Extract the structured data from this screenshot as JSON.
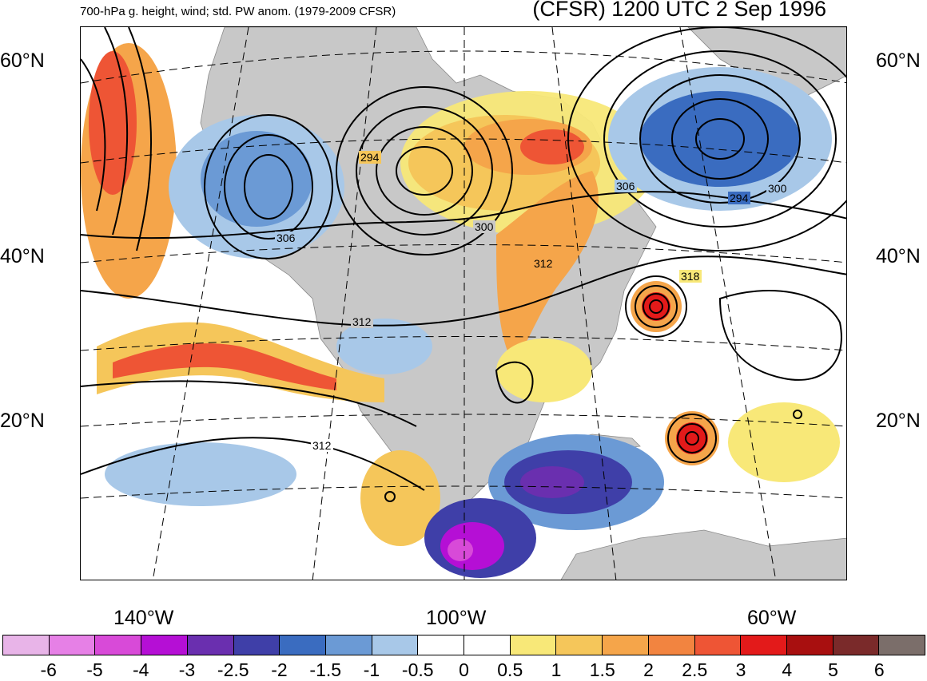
{
  "header": {
    "left_title": "700-hPa g. height, wind; std. PW anom. (1979-2009 CFSR)",
    "right_title": "(CFSR) 1200 UTC 2 Sep 1996"
  },
  "map": {
    "lat_labels": [
      "60°N",
      "40°N",
      "20°N"
    ],
    "lon_labels": [
      "140°W",
      "100°W",
      "60°W"
    ],
    "contour_labels": [
      "294",
      "300",
      "306",
      "312",
      "318"
    ],
    "map_label_instances": [
      "294",
      "306",
      "300",
      "312",
      "306",
      "294",
      "300",
      "312",
      "318",
      "312"
    ]
  },
  "colorbar": {
    "colors": [
      "#e8b4e8",
      "#e680e6",
      "#d84ad8",
      "#b50fd5",
      "#6a2faf",
      "#3f3fa8",
      "#3a6cc0",
      "#6b9ad5",
      "#a8c8e8",
      "#ffffff",
      "#ffffff",
      "#f8e878",
      "#f5c65a",
      "#f5a54a",
      "#f28440",
      "#ee5535",
      "#e31a1a",
      "#a80f0f",
      "#7a2a2a",
      "#7b6e6a"
    ],
    "labels": [
      "-6",
      "-5",
      "-4",
      "-3",
      "-2.5",
      "-2",
      "-1.5",
      "-1",
      "-0.5",
      "0",
      "0.5",
      "1",
      "1.5",
      "2",
      "2.5",
      "3",
      "4",
      "5",
      "6"
    ]
  },
  "palette": {
    "land": "#c8c8c8",
    "ocean": "#ffffff",
    "contour": "#000000",
    "pos_strong": "#ee5535",
    "pos_mid": "#f5a54a",
    "pos_weak": "#f8e878",
    "neg_weak": "#a8c8e8",
    "neg_mid": "#3a6cc0",
    "neg_strong": "#6a2faf",
    "neg_extreme": "#d84ad8"
  }
}
